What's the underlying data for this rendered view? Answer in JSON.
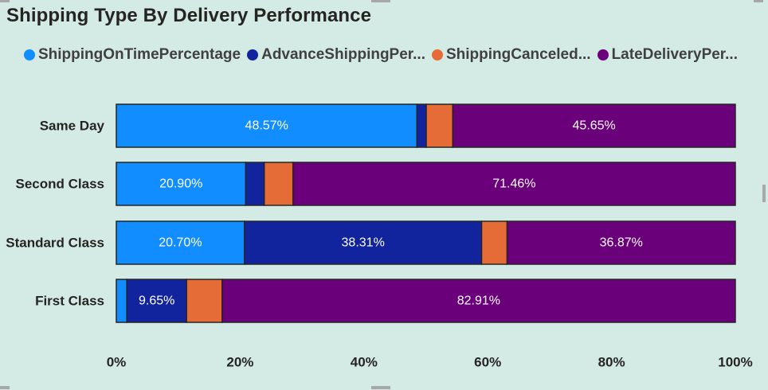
{
  "title": "Shipping Type By Delivery Performance",
  "legend": [
    {
      "label": "ShippingOnTimePercentage",
      "color": "#118dff"
    },
    {
      "label": "AdvanceShippingPer...",
      "color": "#12239e"
    },
    {
      "label": "ShippingCanceled...",
      "color": "#e66c37"
    },
    {
      "label": "LateDeliveryPer...",
      "color": "#6b007b"
    }
  ],
  "chart_data": {
    "type": "bar",
    "orientation": "horizontal",
    "stacked": "100%",
    "title": "Shipping Type By Delivery Performance",
    "categories": [
      "Same Day",
      "Second Class",
      "Standard Class",
      "First Class"
    ],
    "series": [
      {
        "name": "ShippingOnTimePercentage",
        "color": "#118dff",
        "values": [
          48.57,
          20.9,
          20.7,
          1.7
        ],
        "labels": [
          "48.57%",
          "20.90%",
          "20.70%",
          ""
        ]
      },
      {
        "name": "AdvanceShippingPer...",
        "color": "#12239e",
        "values": [
          1.5,
          3.0,
          38.31,
          9.65
        ],
        "labels": [
          "",
          "",
          "38.31%",
          "9.65%"
        ]
      },
      {
        "name": "ShippingCanceled...",
        "color": "#e66c37",
        "values": [
          4.28,
          4.64,
          4.12,
          5.74
        ],
        "labels": [
          "",
          "",
          "",
          ""
        ]
      },
      {
        "name": "LateDeliveryPer...",
        "color": "#6b007b",
        "values": [
          45.65,
          71.46,
          36.87,
          82.91
        ],
        "labels": [
          "45.65%",
          "71.46%",
          "36.87%",
          "82.91%"
        ]
      }
    ],
    "xticks": [
      "0%",
      "20%",
      "40%",
      "60%",
      "80%",
      "100%"
    ],
    "xlim": [
      0,
      100
    ],
    "grid": false,
    "legend_position": "top-left"
  }
}
